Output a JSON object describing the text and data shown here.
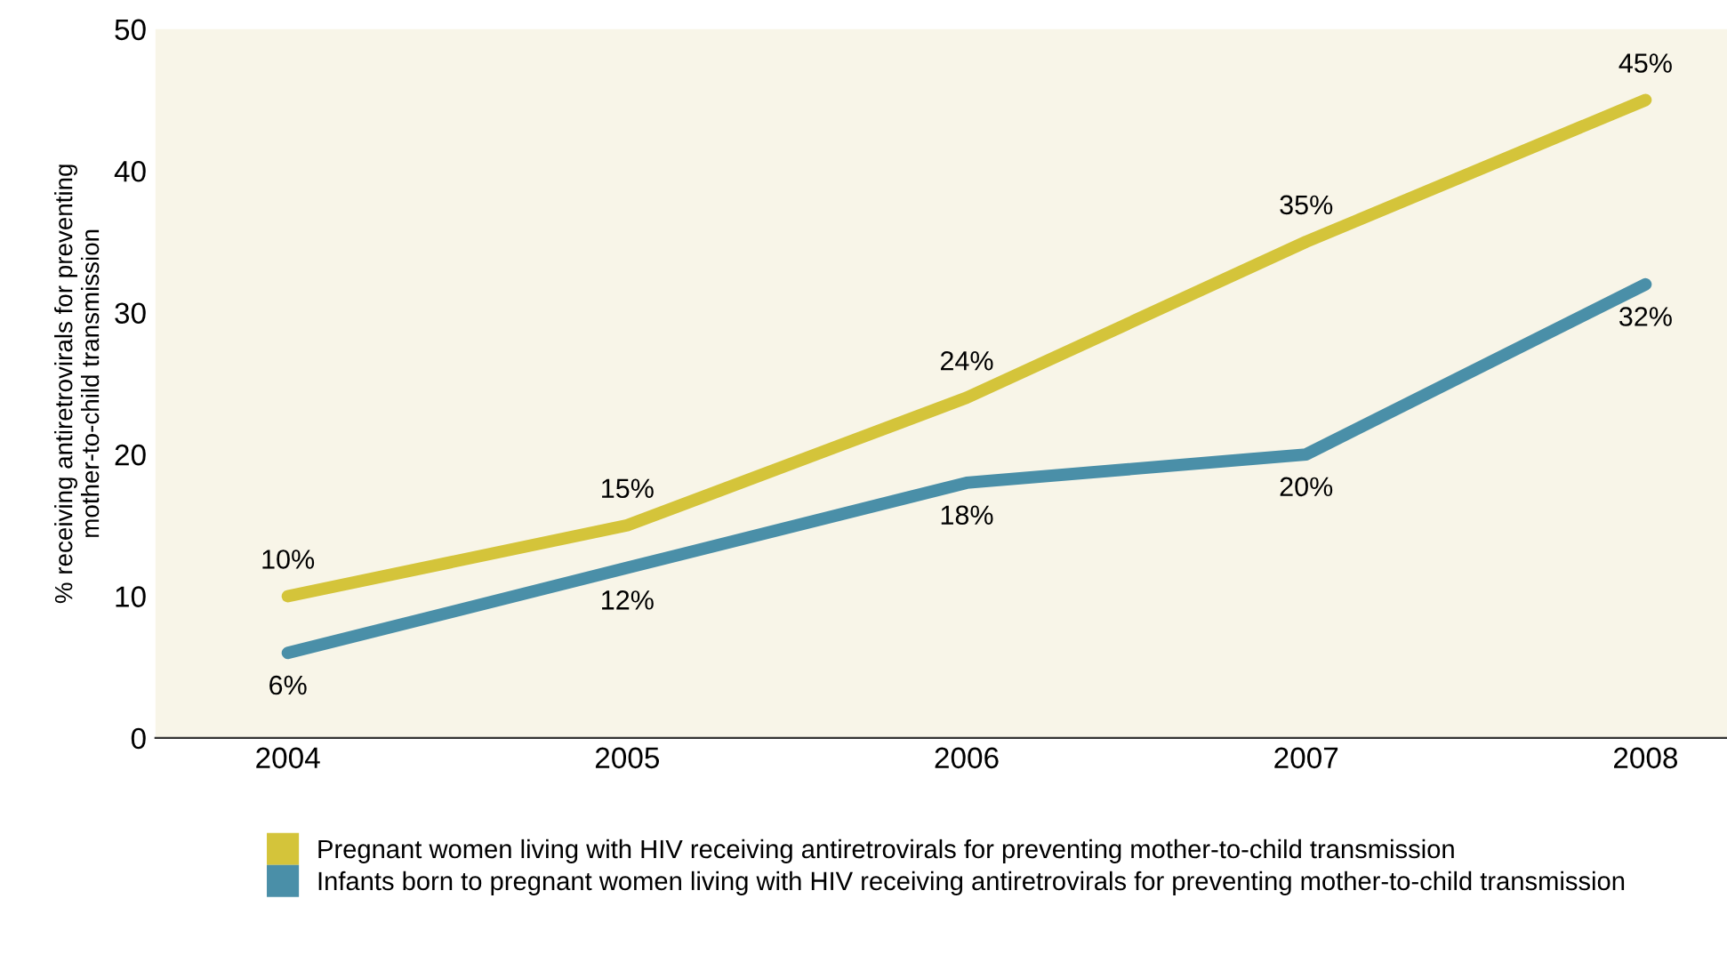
{
  "chart_data": {
    "type": "line",
    "ylabel": "% receiving antiretrovirals for preventing\nmother-to-child transmission",
    "categories": [
      "2004",
      "2005",
      "2006",
      "2007",
      "2008"
    ],
    "series": [
      {
        "name": "Pregnant women living with HIV receiving antiretrovirals for preventing mother-to-child transmission",
        "color": "#d4c43a",
        "values": [
          10,
          15,
          24,
          35,
          45
        ],
        "value_labels": [
          "10%",
          "15%",
          "24%",
          "35%",
          "45%"
        ]
      },
      {
        "name": "Infants born to pregnant women living with HIV receiving antiretrovirals for preventing mother-to-child transmission",
        "color": "#4a8fa8",
        "values": [
          6,
          12,
          18,
          20,
          32
        ],
        "value_labels": [
          "6%",
          "12%",
          "18%",
          "20%",
          "32%"
        ]
      }
    ],
    "ylim": [
      0,
      50
    ],
    "yticks": [
      0,
      10,
      20,
      30,
      40,
      50
    ],
    "grid": false,
    "legend": "bottom",
    "marker": "none",
    "line_style": "solid"
  }
}
